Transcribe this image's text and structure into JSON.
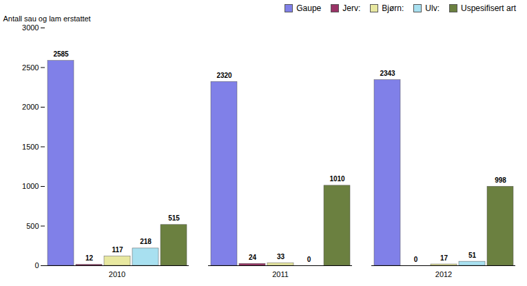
{
  "chart_data": {
    "type": "bar",
    "categories": [
      "2010",
      "2011",
      "2012"
    ],
    "series": [
      {
        "name": "Gaupe",
        "color": "#8080e8",
        "values": [
          2585,
          2320,
          2343
        ]
      },
      {
        "name": "Jerv:",
        "color": "#993366",
        "values": [
          12,
          24,
          0
        ]
      },
      {
        "name": "Bjørn:",
        "color": "#e8e8a0",
        "values": [
          117,
          33,
          17
        ]
      },
      {
        "name": "Ulv:",
        "color": "#a8e0f0",
        "values": [
          218,
          0,
          51
        ]
      },
      {
        "name": "Uspesifisert art",
        "color": "#6b8040",
        "values": [
          515,
          1010,
          998
        ]
      }
    ],
    "ylabel": "Antall sau og lam erstattet",
    "ylim": [
      0,
      3000
    ],
    "yticks": [
      0,
      500,
      1000,
      1500,
      2000,
      2500,
      3000
    ],
    "legend": "upper right",
    "data_labels": true,
    "grid": false
  }
}
